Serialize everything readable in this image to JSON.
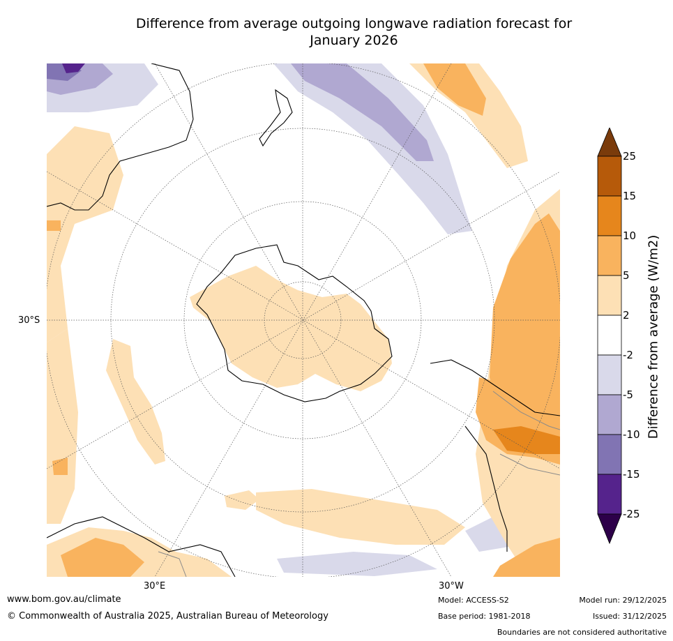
{
  "title": {
    "line1": "Difference from average outgoing longwave radiation forecast for",
    "line2": "January 2026"
  },
  "map": {
    "projection": "south-polar stereographic",
    "latitude_label": "30°S",
    "longitude_labels": {
      "east": "30°E",
      "west": "30°W"
    },
    "region_colors": {
      "neg_2_to_5": "#d9d9ea",
      "neg_5_to_10": "#b0a8d1",
      "neg_10_to_15": "#8174b3",
      "pos_2_to_5": "#fde0b5",
      "pos_5_to_10": "#f9b35e",
      "pos_10_to_15": "#e6861c",
      "coastline": "#000000",
      "boundaries": "#8a8a8a",
      "gridlines": "#555555"
    }
  },
  "colorbar": {
    "title": "Difference from average (W/m2)",
    "ticks": [
      "25",
      "15",
      "10",
      "5",
      "2",
      "-2",
      "-5",
      "-10",
      "-15",
      "-25"
    ],
    "colors_top_to_bottom": [
      "#7a3b0b",
      "#b65a0a",
      "#e6861c",
      "#f9b35e",
      "#fde0b5",
      "#ffffff",
      "#d9d9ea",
      "#b0a8d1",
      "#8174b3",
      "#55238c",
      "#2d0049"
    ]
  },
  "footer": {
    "website": "www.bom.gov.au/climate",
    "copyright": "© Commonwealth of Australia 2025, Australian Bureau of Meteorology",
    "model": "Model: ACCESS-S2",
    "base_period": "Base period: 1981-2018",
    "model_run": "Model run: 29/12/2025",
    "issued": "Issued: 31/12/2025",
    "disclaimer": "Boundaries are not considered authoritative"
  }
}
